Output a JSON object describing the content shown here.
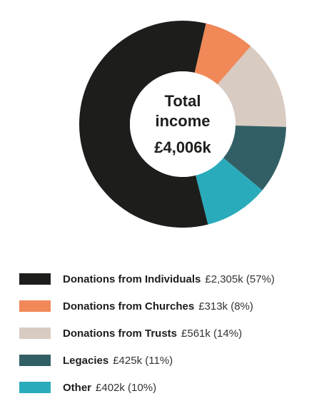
{
  "center": {
    "title_line1": "Total",
    "title_line2": "income",
    "value": "£4,006k"
  },
  "chart_data": {
    "type": "pie",
    "variant": "donut",
    "total_label": "Total income",
    "total": 4006,
    "unit": "£k",
    "categories": [
      "Donations from Individuals",
      "Donations from Churches",
      "Donations from Trusts",
      "Legacies",
      "Other"
    ],
    "values": [
      2305,
      313,
      561,
      425,
      402
    ],
    "percentages": [
      57,
      8,
      14,
      11,
      10
    ],
    "colors": [
      "#1d1d1b",
      "#f08858",
      "#d8cbc2",
      "#325f65",
      "#2aabbb"
    ],
    "legend_position": "bottom"
  },
  "legend": [
    {
      "name": "Donations from Individuals",
      "value": "£2,305k (57%)",
      "color": "#1d1d1b"
    },
    {
      "name": "Donations from Churches",
      "value": "£313k (8%)",
      "color": "#f08858"
    },
    {
      "name": "Donations from Trusts",
      "value": "£561k (14%)",
      "color": "#d8cbc2"
    },
    {
      "name": "Legacies",
      "value": "£425k (11%)",
      "color": "#325f65"
    },
    {
      "name": "Other",
      "value": "£402k (10%)",
      "color": "#2aabbb"
    }
  ]
}
